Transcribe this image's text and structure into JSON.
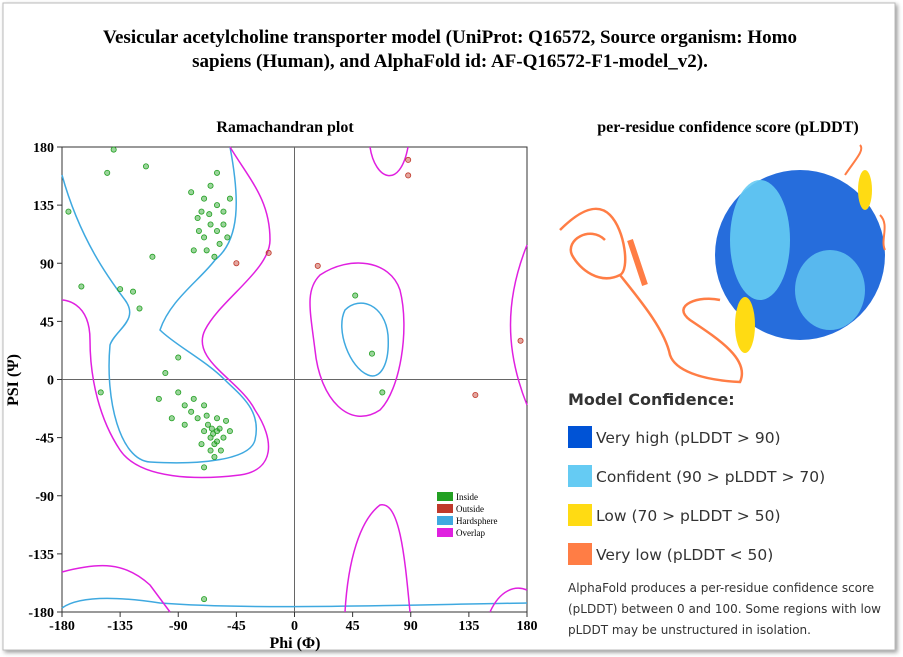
{
  "title": "Vesicular acetylcholine transporter model (UniProt: Q16572, Source organism: Homo sapiens (Human), and AlphaFold id: AF-Q16572-F1-model_v2).",
  "chart_data": {
    "type": "scatter",
    "title": "Ramachandran plot",
    "x_label": "Phi (Φ)",
    "y_label": "PSI (Ψ)",
    "xlim": [
      -180,
      180
    ],
    "ylim": [
      -180,
      180
    ],
    "xticks": [
      -180,
      -135,
      -90,
      -45,
      0,
      45,
      90,
      135,
      180
    ],
    "yticks": [
      -180,
      -135,
      -90,
      -45,
      0,
      45,
      90,
      135,
      180
    ],
    "series": [
      {
        "name": "Inside",
        "color": "#22a022",
        "x": [
          -65,
          -70,
          -60,
          -55,
          -75,
          -65,
          -60,
          -70,
          -58,
          -68,
          -62,
          -72,
          -50,
          -80,
          -55,
          -66,
          -74,
          -60,
          -52,
          -78,
          -140,
          -115,
          -145,
          -175,
          -165,
          -135,
          -125,
          -110,
          -120,
          -90,
          -100,
          -150,
          -70,
          -105,
          -85,
          -63,
          -60,
          -65,
          -58,
          -67,
          -62,
          -55,
          -70,
          -60,
          -65,
          -57,
          -72,
          -75,
          -80,
          -68,
          -50,
          -53,
          -85,
          -90,
          -78,
          -62,
          -95,
          -70,
          -60,
          -64,
          47,
          60,
          68,
          -70
        ],
        "values": [
          150,
          140,
          135,
          130,
          125,
          120,
          115,
          110,
          105,
          100,
          95,
          130,
          140,
          145,
          120,
          128,
          115,
          160,
          110,
          100,
          178,
          165,
          160,
          130,
          72,
          70,
          68,
          95,
          55,
          17,
          5,
          -10,
          -68,
          -15,
          -20,
          -42,
          -40,
          -45,
          -38,
          -35,
          -50,
          -45,
          -40,
          -30,
          -55,
          -55,
          -50,
          -30,
          -25,
          -28,
          -40,
          -32,
          -35,
          -10,
          -15,
          -60,
          -30,
          -20,
          -48,
          -38,
          65,
          20,
          -10,
          -170
        ]
      },
      {
        "name": "Outside",
        "color": "#c0392b",
        "x": [
          -45,
          -20,
          18,
          88,
          88,
          140,
          175
        ],
        "values": [
          90,
          98,
          88,
          170,
          158,
          -12,
          30
        ]
      }
    ],
    "regions": [
      {
        "name": "Hardsphere",
        "color": "#3fa9e0"
      },
      {
        "name": "Overlap",
        "color": "#e020e0"
      }
    ]
  },
  "panel": {
    "title": "per-residue confidence score (pLDDT)",
    "legend_title": "Model Confidence:",
    "legend": [
      {
        "label": "Very high (pLDDT > 90)",
        "color": "#0053d6"
      },
      {
        "label": "Confident (90 > pLDDT > 70)",
        "color": "#65cbf3"
      },
      {
        "label": "Low (70 > pLDDT > 50)",
        "color": "#ffdb13"
      },
      {
        "label": "Very low (pLDDT < 50)",
        "color": "#ff7d45"
      }
    ],
    "note": [
      "AlphaFold produces a per-residue confidence score",
      "(pLDDT) between 0 and 100. Some regions with low",
      "pLDDT may be unstructured in isolation."
    ]
  }
}
